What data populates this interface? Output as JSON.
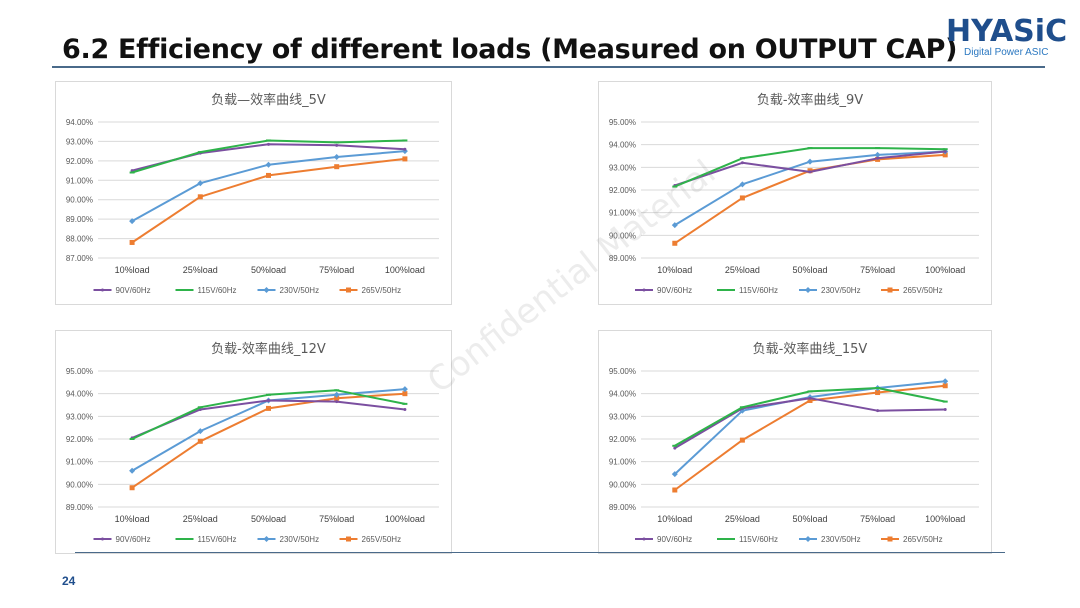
{
  "slide": {
    "title": "6.2  Efficiency of different loads (Measured on OUTPUT CAP)",
    "page_number": "24",
    "watermark": "Confidential Material"
  },
  "logo": {
    "name": "HYASiC",
    "subtitle": "Digital Power ASIC"
  },
  "colors": {
    "90V/60Hz": "#7b4fa0",
    "115V/60Hz": "#2eb34a",
    "230V/50Hz": "#5b9bd5",
    "265V/50Hz": "#ed7d31",
    "grid": "#d9d9d9",
    "axis_text": "#595959"
  },
  "chart_data": [
    {
      "type": "line",
      "title": "负载—效率曲线_5V",
      "categories": [
        "10%load",
        "25%load",
        "50%load",
        "75%load",
        "100%load"
      ],
      "y_ticks": [
        "87.00%",
        "88.00%",
        "89.00%",
        "90.00%",
        "91.00%",
        "92.00%",
        "93.00%",
        "94.00%"
      ],
      "ylim": [
        87,
        94
      ],
      "series": [
        {
          "name": "90V/60Hz",
          "values": [
            91.5,
            92.4,
            92.85,
            92.8,
            92.6
          ]
        },
        {
          "name": "115V/60Hz",
          "values": [
            91.4,
            92.45,
            93.05,
            92.95,
            93.05
          ]
        },
        {
          "name": "230V/50Hz",
          "values": [
            88.9,
            90.85,
            91.8,
            92.2,
            92.5
          ]
        },
        {
          "name": "265V/50Hz",
          "values": [
            87.8,
            90.15,
            91.25,
            91.7,
            92.1
          ]
        }
      ]
    },
    {
      "type": "line",
      "title": "负载-效率曲线_9V",
      "categories": [
        "10%load",
        "25%load",
        "50%load",
        "75%load",
        "100%load"
      ],
      "y_ticks": [
        "89.00%",
        "90.00%",
        "91.00%",
        "92.00%",
        "93.00%",
        "94.00%",
        "95.00%"
      ],
      "ylim": [
        89,
        95
      ],
      "series": [
        {
          "name": "90V/60Hz",
          "values": [
            92.2,
            93.2,
            92.8,
            93.4,
            93.7
          ]
        },
        {
          "name": "115V/60Hz",
          "values": [
            92.15,
            93.4,
            93.85,
            93.85,
            93.8
          ]
        },
        {
          "name": "230V/50Hz",
          "values": [
            90.45,
            92.25,
            93.25,
            93.55,
            93.7
          ]
        },
        {
          "name": "265V/50Hz",
          "values": [
            89.65,
            91.65,
            92.85,
            93.35,
            93.55
          ]
        }
      ]
    },
    {
      "type": "line",
      "title": "负载-效率曲线_12V",
      "categories": [
        "10%load",
        "25%load",
        "50%load",
        "75%load",
        "100%load"
      ],
      "y_ticks": [
        "89.00%",
        "90.00%",
        "91.00%",
        "92.00%",
        "93.00%",
        "94.00%",
        "95.00%"
      ],
      "ylim": [
        89,
        95
      ],
      "series": [
        {
          "name": "90V/60Hz",
          "values": [
            92.05,
            93.3,
            93.7,
            93.65,
            93.3
          ]
        },
        {
          "name": "115V/60Hz",
          "values": [
            92.0,
            93.4,
            93.95,
            94.15,
            93.55
          ]
        },
        {
          "name": "230V/50Hz",
          "values": [
            90.6,
            92.35,
            93.7,
            93.95,
            94.2
          ]
        },
        {
          "name": "265V/50Hz",
          "values": [
            89.85,
            91.9,
            93.35,
            93.8,
            94.0
          ]
        }
      ]
    },
    {
      "type": "line",
      "title": "负载-效率曲线_15V",
      "categories": [
        "10%load",
        "25%load",
        "50%load",
        "75%load",
        "100%load"
      ],
      "y_ticks": [
        "89.00%",
        "90.00%",
        "91.00%",
        "92.00%",
        "93.00%",
        "94.00%",
        "95.00%"
      ],
      "ylim": [
        89,
        95
      ],
      "series": [
        {
          "name": "90V/60Hz",
          "values": [
            91.6,
            93.35,
            93.8,
            93.25,
            93.3
          ]
        },
        {
          "name": "115V/60Hz",
          "values": [
            91.7,
            93.4,
            94.1,
            94.25,
            93.65
          ]
        },
        {
          "name": "230V/50Hz",
          "values": [
            90.45,
            93.25,
            93.85,
            94.25,
            94.55
          ]
        },
        {
          "name": "265V/50Hz",
          "values": [
            89.75,
            91.95,
            93.7,
            94.05,
            94.35
          ]
        }
      ]
    }
  ]
}
